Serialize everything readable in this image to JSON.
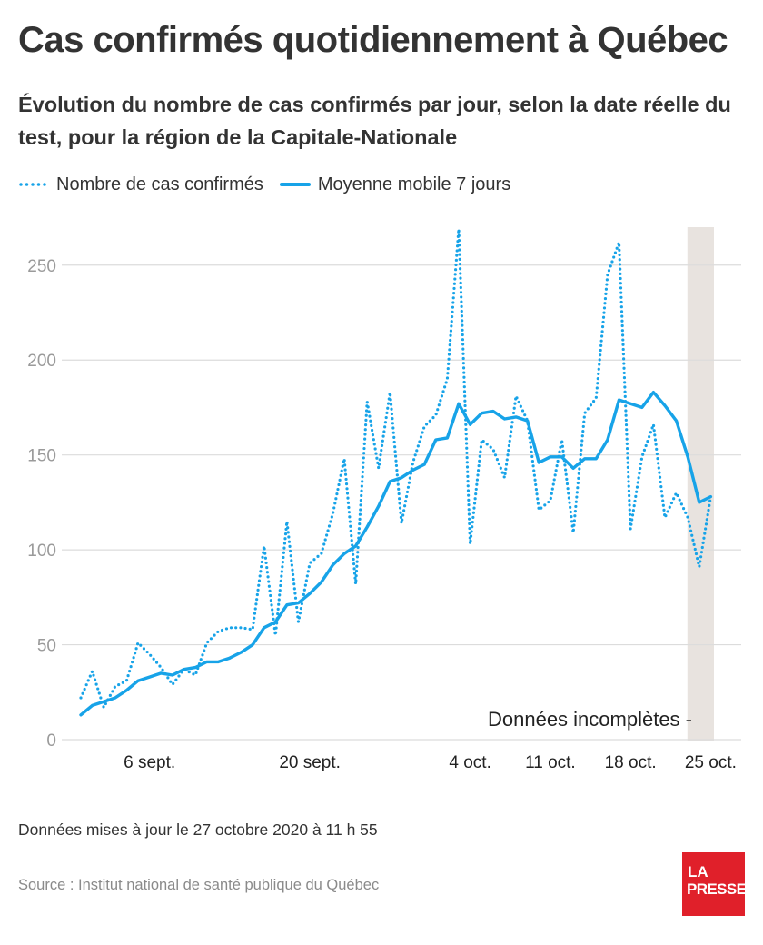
{
  "header": {
    "title": "Cas confirmés quotidiennement à Québec",
    "subtitle": "Évolution du nombre de cas confirmés par jour, selon la date réelle du test, pour la région de la Capitale-Nationale"
  },
  "legend": {
    "daily_label": "Nombre de cas confirmés",
    "avg_label": "Moyenne mobile 7 jours"
  },
  "annotation": {
    "incomplete_label": "Données incomplètes -"
  },
  "footer": {
    "updated": "Données mises à jour le 27 octobre 2020 à 11 h 55",
    "source": "Source : Institut national de santé publique du Québec"
  },
  "logo": {
    "line1": "LA",
    "line2": "PRESSE"
  },
  "colors": {
    "series": "#17a3e8",
    "grid": "#dcdcdc",
    "tick_text": "#9a9a9a",
    "shade": "#e8e3df",
    "brand": "#e0202a"
  },
  "chart_data": {
    "type": "line",
    "x_tick_labels": [
      "6 sept.",
      "20 sept.",
      "4 oct.",
      "11 oct.",
      "18 oct.",
      "25 oct."
    ],
    "x_tick_dates": [
      "2020-09-06",
      "2020-09-20",
      "2020-10-04",
      "2020-10-11",
      "2020-10-18",
      "2020-10-25"
    ],
    "x_range": [
      "2020-08-31",
      "2020-10-26"
    ],
    "ylim": [
      0,
      270
    ],
    "y_ticks": [
      0,
      50,
      100,
      150,
      200,
      250
    ],
    "grid": true,
    "legend_position": "top-left",
    "shaded_range": [
      "2020-10-24",
      "2020-10-26"
    ],
    "series": [
      {
        "name": "Nombre de cas confirmés",
        "style": "dotted",
        "points": [
          [
            "2020-08-31",
            22
          ],
          [
            "2020-09-01",
            36
          ],
          [
            "2020-09-02",
            17
          ],
          [
            "2020-09-03",
            28
          ],
          [
            "2020-09-04",
            31
          ],
          [
            "2020-09-05",
            51
          ],
          [
            "2020-09-06",
            45
          ],
          [
            "2020-09-07",
            38
          ],
          [
            "2020-09-08",
            29
          ],
          [
            "2020-09-09",
            37
          ],
          [
            "2020-09-10",
            34
          ],
          [
            "2020-09-11",
            51
          ],
          [
            "2020-09-12",
            57
          ],
          [
            "2020-09-13",
            59
          ],
          [
            "2020-09-14",
            59
          ],
          [
            "2020-09-15",
            58
          ],
          [
            "2020-09-16",
            102
          ],
          [
            "2020-09-17",
            55
          ],
          [
            "2020-09-18",
            115
          ],
          [
            "2020-09-19",
            62
          ],
          [
            "2020-09-20",
            93
          ],
          [
            "2020-09-21",
            98
          ],
          [
            "2020-09-22",
            119
          ],
          [
            "2020-09-23",
            148
          ],
          [
            "2020-09-24",
            82
          ],
          [
            "2020-09-25",
            178
          ],
          [
            "2020-09-26",
            143
          ],
          [
            "2020-09-27",
            183
          ],
          [
            "2020-09-28",
            114
          ],
          [
            "2020-09-29",
            146
          ],
          [
            "2020-09-30",
            165
          ],
          [
            "2020-10-01",
            171
          ],
          [
            "2020-10-02",
            190
          ],
          [
            "2020-10-03",
            269
          ],
          [
            "2020-10-04",
            103
          ],
          [
            "2020-10-05",
            158
          ],
          [
            "2020-10-06",
            153
          ],
          [
            "2020-10-07",
            138
          ],
          [
            "2020-10-08",
            181
          ],
          [
            "2020-10-09",
            168
          ],
          [
            "2020-10-10",
            121
          ],
          [
            "2020-10-11",
            126
          ],
          [
            "2020-10-12",
            158
          ],
          [
            "2020-10-13",
            109
          ],
          [
            "2020-10-14",
            172
          ],
          [
            "2020-10-15",
            180
          ],
          [
            "2020-10-16",
            245
          ],
          [
            "2020-10-17",
            262
          ],
          [
            "2020-10-18",
            111
          ],
          [
            "2020-10-19",
            149
          ],
          [
            "2020-10-20",
            166
          ],
          [
            "2020-10-21",
            117
          ],
          [
            "2020-10-22",
            130
          ],
          [
            "2020-10-23",
            117
          ],
          [
            "2020-10-24",
            91
          ],
          [
            "2020-10-25",
            128
          ]
        ]
      },
      {
        "name": "Moyenne mobile 7 jours",
        "style": "solid",
        "points": [
          [
            "2020-08-31",
            13
          ],
          [
            "2020-09-01",
            18
          ],
          [
            "2020-09-02",
            20
          ],
          [
            "2020-09-03",
            22
          ],
          [
            "2020-09-04",
            26
          ],
          [
            "2020-09-05",
            31
          ],
          [
            "2020-09-06",
            33
          ],
          [
            "2020-09-07",
            35
          ],
          [
            "2020-09-08",
            34
          ],
          [
            "2020-09-09",
            37
          ],
          [
            "2020-09-10",
            38
          ],
          [
            "2020-09-11",
            41
          ],
          [
            "2020-09-12",
            41
          ],
          [
            "2020-09-13",
            43
          ],
          [
            "2020-09-14",
            46
          ],
          [
            "2020-09-15",
            50
          ],
          [
            "2020-09-16",
            59
          ],
          [
            "2020-09-17",
            62
          ],
          [
            "2020-09-18",
            71
          ],
          [
            "2020-09-19",
            72
          ],
          [
            "2020-09-20",
            77
          ],
          [
            "2020-09-21",
            83
          ],
          [
            "2020-09-22",
            92
          ],
          [
            "2020-09-23",
            98
          ],
          [
            "2020-09-24",
            102
          ],
          [
            "2020-09-25",
            112
          ],
          [
            "2020-09-26",
            123
          ],
          [
            "2020-09-27",
            136
          ],
          [
            "2020-09-28",
            138
          ],
          [
            "2020-09-29",
            142
          ],
          [
            "2020-09-30",
            145
          ],
          [
            "2020-10-01",
            158
          ],
          [
            "2020-10-02",
            159
          ],
          [
            "2020-10-03",
            177
          ],
          [
            "2020-10-04",
            166
          ],
          [
            "2020-10-05",
            172
          ],
          [
            "2020-10-06",
            173
          ],
          [
            "2020-10-07",
            169
          ],
          [
            "2020-10-08",
            170
          ],
          [
            "2020-10-09",
            168
          ],
          [
            "2020-10-10",
            146
          ],
          [
            "2020-10-11",
            149
          ],
          [
            "2020-10-12",
            149
          ],
          [
            "2020-10-13",
            143
          ],
          [
            "2020-10-14",
            148
          ],
          [
            "2020-10-15",
            148
          ],
          [
            "2020-10-16",
            158
          ],
          [
            "2020-10-17",
            179
          ],
          [
            "2020-10-18",
            177
          ],
          [
            "2020-10-19",
            175
          ],
          [
            "2020-10-20",
            183
          ],
          [
            "2020-10-21",
            176
          ],
          [
            "2020-10-22",
            168
          ],
          [
            "2020-10-23",
            149
          ],
          [
            "2020-10-24",
            125
          ],
          [
            "2020-10-25",
            128
          ]
        ]
      }
    ]
  }
}
